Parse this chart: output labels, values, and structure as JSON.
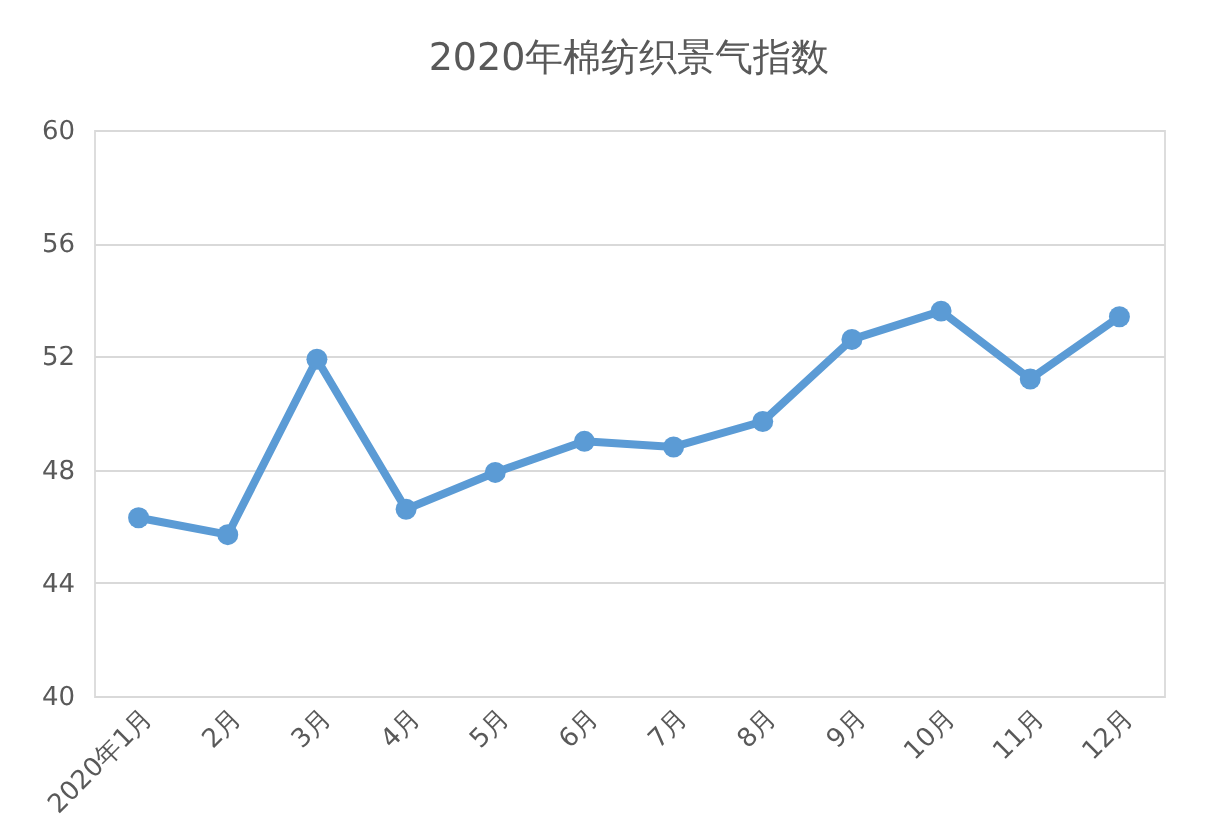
{
  "chart_data": {
    "type": "line",
    "title": "2020年棉纺织景气指数",
    "categories": [
      "2020年1月",
      "2月",
      "3月",
      "4月",
      "5月",
      "6月",
      "7月",
      "8月",
      "9月",
      "10月",
      "11月",
      "12月"
    ],
    "series": [
      {
        "color": "#5b9bd5",
        "values": [
          46.3,
          45.7,
          51.9,
          46.6,
          47.9,
          49.0,
          48.8,
          49.7,
          52.6,
          53.6,
          51.2,
          53.4
        ]
      }
    ],
    "ylim": [
      40,
      60
    ],
    "yticks": [
      40,
      44,
      48,
      52,
      56,
      60
    ],
    "grid": "y",
    "marker": "circle",
    "line_style": "solid"
  }
}
